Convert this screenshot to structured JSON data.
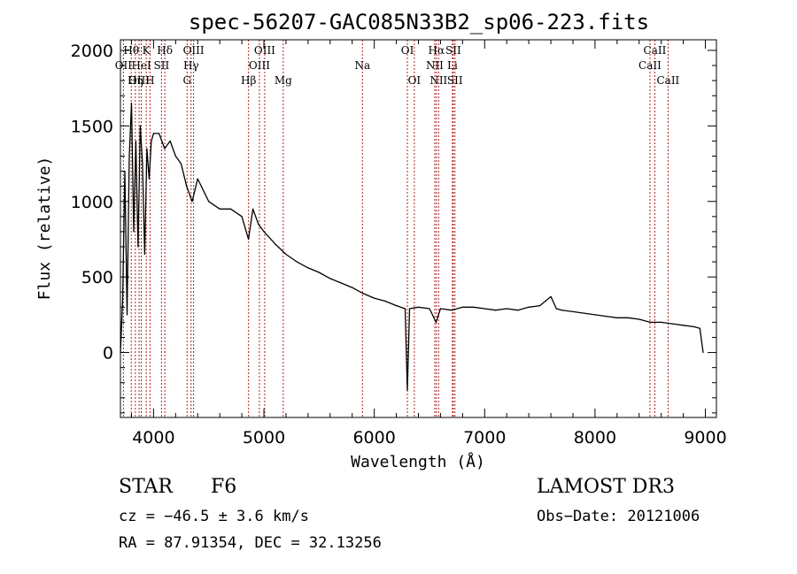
{
  "chart_data": {
    "type": "line",
    "title": "spec-56207-GAC085N33B2_sp06-223.fits",
    "xlabel": "Wavelength (Å)",
    "ylabel": "Flux (relative)",
    "xlim": [
      3700,
      9100
    ],
    "ylim": [
      -430,
      2070
    ],
    "xticks": [
      4000,
      5000,
      6000,
      7000,
      8000,
      9000
    ],
    "yticks": [
      0,
      500,
      1000,
      1500,
      2000
    ],
    "series": [
      {
        "name": "flux",
        "x": [
          3700,
          3720,
          3740,
          3760,
          3780,
          3800,
          3820,
          3840,
          3860,
          3880,
          3900,
          3920,
          3940,
          3960,
          3980,
          4000,
          4050,
          4100,
          4150,
          4200,
          4250,
          4300,
          4350,
          4400,
          4500,
          4600,
          4700,
          4800,
          4860,
          4900,
          4950,
          5000,
          5100,
          5200,
          5300,
          5400,
          5500,
          5600,
          5700,
          5800,
          5900,
          6000,
          6100,
          6200,
          6280,
          6300,
          6320,
          6400,
          6500,
          6560,
          6600,
          6700,
          6800,
          6900,
          7000,
          7100,
          7200,
          7300,
          7400,
          7500,
          7600,
          7650,
          7700,
          7800,
          7900,
          8000,
          8100,
          8200,
          8300,
          8400,
          8500,
          8600,
          8700,
          8800,
          8900,
          8950,
          8980
        ],
        "y": [
          0,
          350,
          1200,
          250,
          1300,
          1650,
          800,
          1400,
          700,
          1500,
          1250,
          650,
          1350,
          1150,
          1400,
          1450,
          1450,
          1350,
          1400,
          1300,
          1250,
          1100,
          1000,
          1150,
          1000,
          950,
          950,
          900,
          750,
          950,
          850,
          800,
          720,
          650,
          600,
          560,
          530,
          490,
          460,
          430,
          390,
          360,
          340,
          310,
          290,
          -250,
          290,
          300,
          290,
          200,
          290,
          280,
          300,
          300,
          290,
          280,
          290,
          280,
          300,
          310,
          370,
          290,
          280,
          270,
          260,
          250,
          240,
          230,
          230,
          220,
          200,
          200,
          190,
          180,
          170,
          160,
          0
        ]
      }
    ],
    "spectral_lines": [
      {
        "label": "Hθ",
        "wavelength": 3798,
        "row": 0
      },
      {
        "label": "OII",
        "wavelength": 3727,
        "row": 1
      },
      {
        "label": "OIII",
        "wavelength": 3869,
        "row": 2
      },
      {
        "label": "K",
        "wavelength": 3934,
        "row": 0
      },
      {
        "label": "HeI",
        "wavelength": 3889,
        "row": 1
      },
      {
        "label": "Hη",
        "wavelength": 3835,
        "row": 2
      },
      {
        "label": "H",
        "wavelength": 3968,
        "row": 2
      },
      {
        "label": "Hδ",
        "wavelength": 4102,
        "row": 0
      },
      {
        "label": "SII",
        "wavelength": 4072,
        "row": 1
      },
      {
        "label": "OIII",
        "wavelength": 4363,
        "row": 0
      },
      {
        "label": "Hγ",
        "wavelength": 4340,
        "row": 1
      },
      {
        "label": "G",
        "wavelength": 4304,
        "row": 2
      },
      {
        "label": "OIII",
        "wavelength": 5007,
        "row": 0
      },
      {
        "label": "OIII",
        "wavelength": 4959,
        "row": 1
      },
      {
        "label": "Hβ",
        "wavelength": 4861,
        "row": 2
      },
      {
        "label": "Mg",
        "wavelength": 5175,
        "row": 2
      },
      {
        "label": "Na",
        "wavelength": 5893,
        "row": 1
      },
      {
        "label": "OI",
        "wavelength": 6300,
        "row": 0
      },
      {
        "label": "OI",
        "wavelength": 6363,
        "row": 2
      },
      {
        "label": "Hα",
        "wavelength": 6563,
        "row": 0
      },
      {
        "label": "SII",
        "wavelength": 6716,
        "row": 0
      },
      {
        "label": "NII",
        "wavelength": 6548,
        "row": 1
      },
      {
        "label": "Li",
        "wavelength": 6708,
        "row": 1
      },
      {
        "label": "NII",
        "wavelength": 6583,
        "row": 2
      },
      {
        "label": "SII",
        "wavelength": 6731,
        "row": 2
      },
      {
        "label": "CaII",
        "wavelength": 8542,
        "row": 0
      },
      {
        "label": "CaII",
        "wavelength": 8498,
        "row": 1
      },
      {
        "label": "CaII",
        "wavelength": 8662,
        "row": 2
      }
    ],
    "line_color": "#b22222",
    "grid": false
  },
  "info": {
    "object_type": "STAR",
    "subclass": "F6",
    "survey": "LAMOST DR3",
    "cz": "cz = −46.5 ± 3.6 km/s",
    "obs_date": "Obs−Date: 20121006",
    "coords": "RA =  87.91354, DEC =  32.13256"
  }
}
